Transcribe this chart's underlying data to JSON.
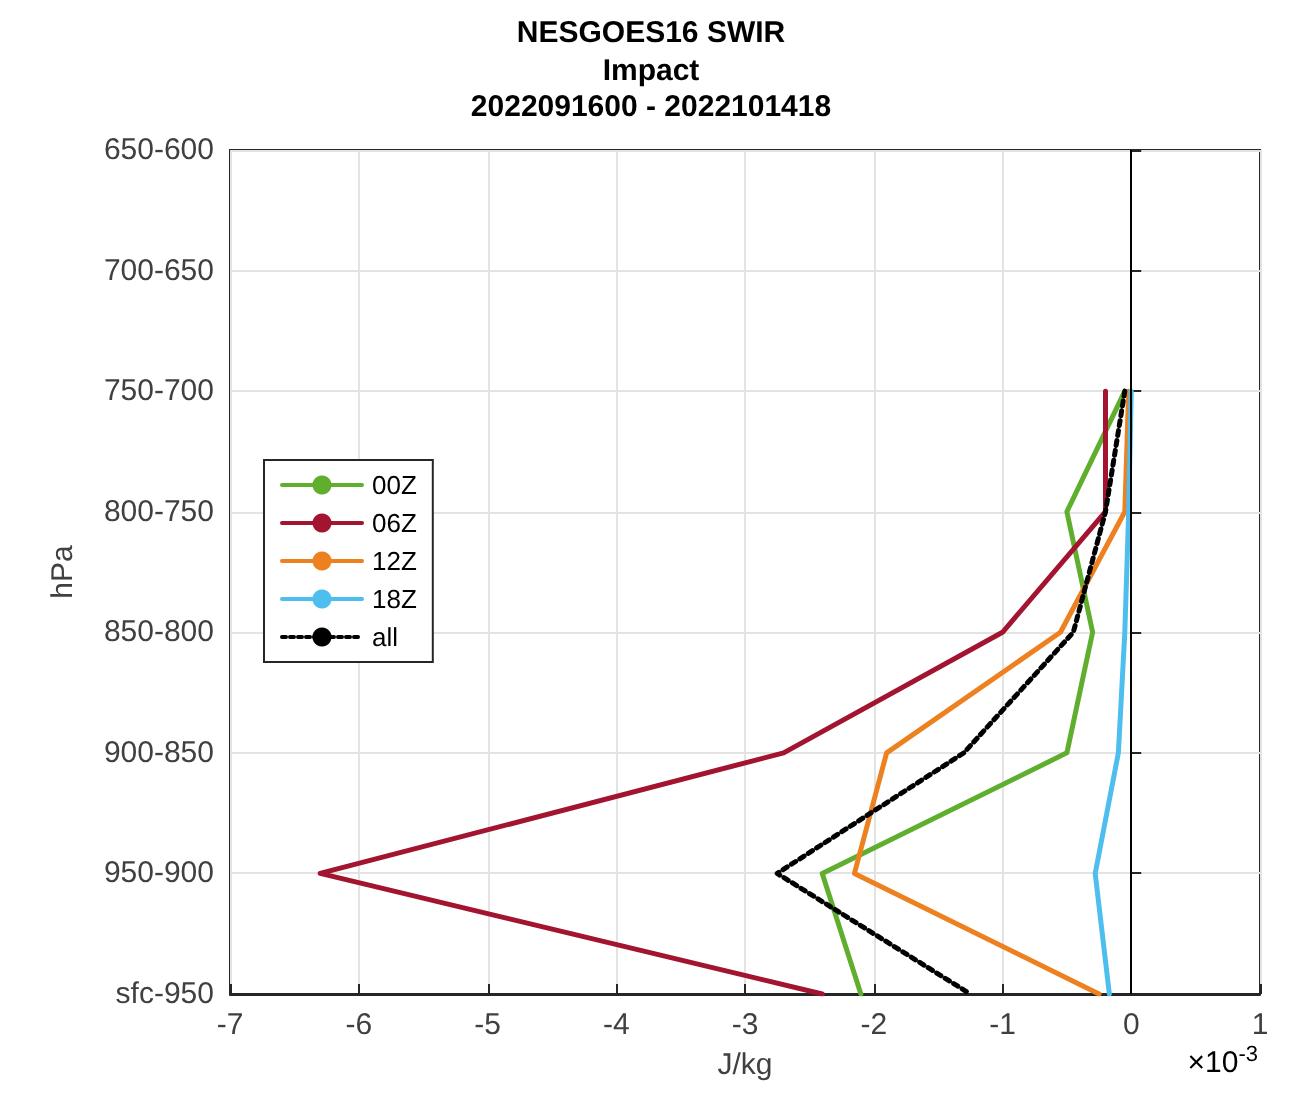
{
  "chart_data": {
    "type": "line",
    "orientation": "horizontal",
    "title": "NESGOES16 SWIR",
    "subtitle": "Impact",
    "annotations": [
      "2022091600 - 2022101418",
      "×10$^{-3}$"
    ],
    "xlabel": "J/kg",
    "ylabel": "hPa",
    "categories": [
      "650-600",
      "700-650",
      "750-700",
      "800-750",
      "850-800",
      "900-850",
      "950-900",
      "sfc-950"
    ],
    "series": [
      {
        "name": "00Z",
        "color": "#5fae2e",
        "values": [
          null,
          null,
          -0.05,
          -0.5,
          -0.3,
          -0.5,
          -2.4,
          -2.1
        ]
      },
      {
        "name": "06Z",
        "color": "#a2142f",
        "values": [
          null,
          null,
          -0.2,
          -0.2,
          -1.0,
          -2.7,
          -6.3,
          -2.4
        ]
      },
      {
        "name": "12Z",
        "color": "#ed8120",
        "values": [
          null,
          null,
          -0.02,
          -0.05,
          -0.55,
          -1.9,
          -2.15,
          -0.25
        ]
      },
      {
        "name": "18Z",
        "color": "#4dbeee",
        "values": [
          null,
          null,
          0,
          -0.02,
          -0.05,
          -0.1,
          -0.28,
          -0.17
        ]
      },
      {
        "name": "all",
        "color": "#000000",
        "line_style": "dotted",
        "values": [
          null,
          null,
          -0.05,
          -0.2,
          -0.45,
          -1.3,
          -2.75,
          -1.25
        ]
      }
    ],
    "xlim": [
      -7,
      1
    ],
    "xticks": [
      -7,
      -6,
      -5,
      -4,
      -3,
      -2,
      -1,
      0,
      1
    ],
    "ref_lines": [
      {
        "axis": "x",
        "value": 0,
        "color": "#000000"
      }
    ],
    "grid": true,
    "legend": "left",
    "marker": "none",
    "line_style": "solid"
  }
}
